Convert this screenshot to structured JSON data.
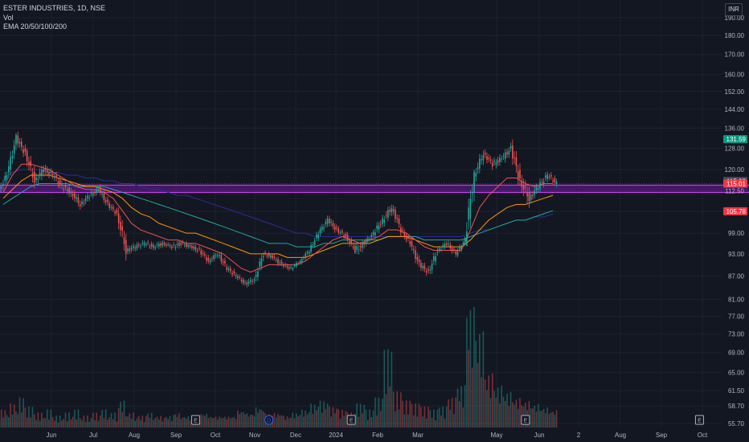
{
  "header": {
    "symbol_line": "ESTER INDUSTRIES, 1D, NSE",
    "volume_label": "Vol",
    "ema_label": "EMA 20/50/100/200"
  },
  "currency": "INR",
  "colors": {
    "background": "#131722",
    "up": "#26a69a",
    "down": "#ef5350",
    "ema20": "#ef5350",
    "ema50": "#ff9800",
    "ema100": "#26a69a",
    "ema200": "#2a2e99",
    "zone_fill": "#6a1b9a",
    "zone_border": "#e040fb",
    "target": "#1f4f4a",
    "stop": "#5a2125"
  },
  "chart_data": {
    "type": "candlestick",
    "y_scale": "log",
    "ylim": [
      55,
      198
    ],
    "y_ticks": [
      190.0,
      180.0,
      170.0,
      160.0,
      152.0,
      144.0,
      136.0,
      128.0,
      120.0,
      112.5,
      105.7,
      99.0,
      93.0,
      87.0,
      81.0,
      77.0,
      73.0,
      69.0,
      65.0,
      61.5,
      58.7,
      55.7
    ],
    "y_tick_labels": [
      "190.00",
      "180.00",
      "170.00",
      "160.00",
      "152.00",
      "144.00",
      "136.00",
      "128.00",
      "120.00",
      "112.50",
      "",
      "99.00",
      "93.00",
      "87.00",
      "81.00",
      "77.00",
      "73.00",
      "69.00",
      "65.00",
      "61.50",
      "58.70",
      "55.70"
    ],
    "x_labels": [
      "Jun",
      "Jul",
      "Aug",
      "Sep",
      "Oct",
      "Nov",
      "Dec",
      "2024",
      "Feb",
      "Mar",
      "May",
      "Jun",
      "2",
      "Aug",
      "Sep",
      "Oct"
    ],
    "price_labels": [
      {
        "value": 131.59,
        "text": "131.59",
        "color": "#089981"
      },
      {
        "value": 115.92,
        "text": "115.92",
        "color": "#4a4e59"
      },
      {
        "value": 115.01,
        "text": "115.01",
        "color": "#f23645"
      },
      {
        "value": 105.78,
        "text": "105.78",
        "color": "#f23645"
      }
    ],
    "event_markers": [
      {
        "label": "E",
        "x_index": 21,
        "color": "#b2b5be"
      },
      {
        "label": "D",
        "x_index": 29,
        "color": "#2962ff"
      },
      {
        "label": "E",
        "x_index": 38,
        "color": "#b2b5be"
      },
      {
        "label": "E",
        "x_index": 57,
        "color": "#b2b5be"
      },
      {
        "label": "E",
        "x_index": 76,
        "color": "#b2b5be"
      },
      {
        "label": "E",
        "x_index": 92,
        "color": "#e040fb"
      }
    ],
    "zone": {
      "y_low": 112.0,
      "y_high": 114.5,
      "x_start_index": 0,
      "x_end_index": 98
    },
    "position": {
      "entry": 115.01,
      "target": 131.59,
      "stop": 105.78,
      "x_start_index": 83,
      "x_end_index": 96
    },
    "ohlc_weekly": [
      [
        112,
        120,
        108,
        118
      ],
      [
        118,
        134,
        116,
        132
      ],
      [
        132,
        135,
        122,
        126
      ],
      [
        126,
        128,
        112,
        116
      ],
      [
        116,
        122,
        109,
        120
      ],
      [
        120,
        126,
        115,
        118
      ],
      [
        118,
        122,
        111,
        114
      ],
      [
        114,
        118,
        108,
        112
      ],
      [
        112,
        116,
        106,
        108
      ],
      [
        108,
        113,
        104,
        111
      ],
      [
        111,
        116,
        108,
        113
      ],
      [
        113,
        115,
        106,
        108
      ],
      [
        108,
        110,
        103,
        105
      ],
      [
        105,
        107,
        91,
        94
      ],
      [
        94,
        97,
        90,
        95
      ],
      [
        95,
        98,
        92,
        96
      ],
      [
        96,
        99,
        93,
        95
      ],
      [
        95,
        98,
        92,
        96
      ],
      [
        96,
        98,
        93,
        95
      ],
      [
        95,
        100,
        93,
        96
      ],
      [
        96,
        98,
        93,
        95
      ],
      [
        95,
        98,
        92,
        94
      ],
      [
        94,
        96,
        89,
        91
      ],
      [
        91,
        95,
        89,
        93
      ],
      [
        93,
        95,
        88,
        89
      ],
      [
        89,
        92,
        86,
        87
      ],
      [
        87,
        89,
        84,
        85
      ],
      [
        85,
        88,
        82,
        86
      ],
      [
        86,
        94,
        85,
        93
      ],
      [
        93,
        95,
        90,
        92
      ],
      [
        92,
        94,
        88,
        90
      ],
      [
        90,
        92,
        87,
        89
      ],
      [
        89,
        92,
        88,
        91
      ],
      [
        91,
        95,
        90,
        94
      ],
      [
        94,
        100,
        93,
        99
      ],
      [
        99,
        105,
        97,
        103
      ],
      [
        103,
        106,
        98,
        100
      ],
      [
        100,
        102,
        96,
        98
      ],
      [
        98,
        100,
        93,
        94
      ],
      [
        94,
        97,
        87,
        96
      ],
      [
        96,
        100,
        94,
        99
      ],
      [
        99,
        105,
        96,
        103
      ],
      [
        103,
        110,
        100,
        107
      ],
      [
        107,
        108,
        98,
        100
      ],
      [
        100,
        102,
        94,
        96
      ],
      [
        96,
        98,
        88,
        90
      ],
      [
        90,
        92,
        85,
        88
      ],
      [
        88,
        95,
        86,
        94
      ],
      [
        94,
        98,
        92,
        96
      ],
      [
        96,
        98,
        91,
        93
      ],
      [
        93,
        98,
        92,
        97
      ],
      [
        97,
        120,
        96,
        118
      ],
      [
        118,
        130,
        115,
        126
      ],
      [
        126,
        129,
        118,
        122
      ],
      [
        122,
        128,
        117,
        124
      ],
      [
        124,
        131,
        120,
        128
      ],
      [
        128,
        132,
        112,
        116
      ],
      [
        116,
        118,
        100,
        110
      ],
      [
        110,
        116,
        106,
        114
      ],
      [
        114,
        120,
        110,
        118
      ],
      [
        118,
        122,
        113,
        115
      ]
    ],
    "volume_weekly": [
      6,
      8,
      10,
      7,
      5,
      6,
      4,
      5,
      6,
      4,
      5,
      6,
      5,
      9,
      5,
      4,
      5,
      4,
      4,
      5,
      4,
      4,
      5,
      4,
      4,
      4,
      6,
      5,
      7,
      5,
      5,
      4,
      5,
      6,
      8,
      9,
      7,
      6,
      5,
      8,
      6,
      10,
      26,
      12,
      9,
      8,
      7,
      6,
      7,
      10,
      14,
      40,
      32,
      18,
      14,
      12,
      10,
      9,
      8,
      7,
      6
    ],
    "ema": {
      "ema20": [
        112,
        118,
        122,
        122,
        121,
        120,
        118,
        116,
        114,
        113,
        113,
        112,
        110,
        106,
        102,
        100,
        99,
        98,
        97,
        97,
        96,
        96,
        95,
        94,
        93,
        91,
        89,
        88,
        89,
        90,
        90,
        90,
        90,
        91,
        93,
        95,
        97,
        98,
        97,
        96,
        97,
        98,
        100,
        100,
        99,
        97,
        95,
        94,
        94,
        94,
        94,
        100,
        107,
        111,
        114,
        117,
        117,
        115,
        114,
        115,
        115
      ],
      "ema50": [
        110,
        113,
        116,
        118,
        118,
        118,
        117,
        116,
        115,
        114,
        114,
        113,
        112,
        110,
        107,
        105,
        104,
        102,
        101,
        100,
        99,
        99,
        98,
        97,
        96,
        95,
        94,
        93,
        93,
        93,
        93,
        92,
        92,
        92,
        93,
        94,
        95,
        96,
        96,
        96,
        96,
        97,
        98,
        98,
        98,
        97,
        96,
        95,
        95,
        95,
        95,
        97,
        100,
        103,
        105,
        107,
        108,
        108,
        109,
        110,
        111
      ],
      "ema100": [
        108,
        110,
        112,
        114,
        115,
        115,
        115,
        115,
        114,
        114,
        114,
        114,
        113,
        112,
        111,
        110,
        109,
        108,
        107,
        106,
        105,
        104,
        103,
        102,
        101,
        100,
        99,
        98,
        97,
        96,
        96,
        96,
        95,
        95,
        95,
        96,
        96,
        97,
        97,
        97,
        97,
        97,
        98,
        98,
        98,
        98,
        97,
        97,
        97,
        97,
        97,
        98,
        99,
        100,
        101,
        102,
        103,
        103,
        104,
        105,
        106
      ],
      "ema200": [
        117,
        119,
        120,
        120,
        120,
        119,
        119,
        118,
        118,
        117,
        117,
        116,
        116,
        115,
        115,
        114,
        113,
        113,
        112,
        111,
        111,
        110,
        109,
        108,
        107,
        106,
        105,
        104,
        103,
        102,
        101,
        100,
        99,
        99,
        98,
        98,
        98,
        98,
        98,
        98,
        98,
        98,
        98,
        98,
        98,
        98,
        98,
        98,
        98,
        98,
        98,
        99,
        100,
        100,
        101,
        102,
        103,
        103,
        104,
        104,
        105
      ]
    }
  }
}
